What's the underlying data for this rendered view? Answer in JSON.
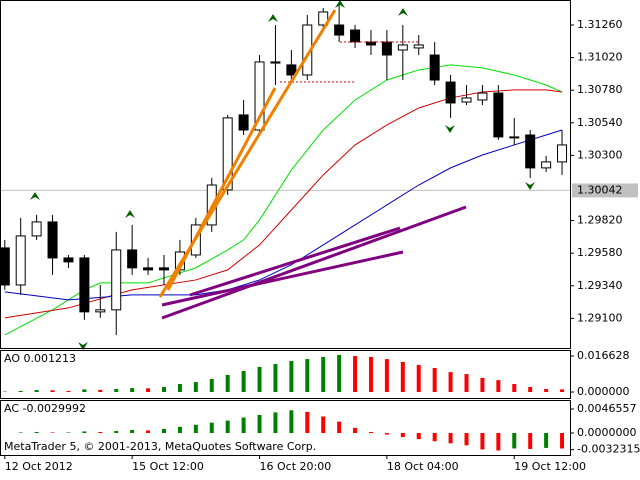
{
  "chart_data": [
    {
      "type": "candlestick",
      "x": [
        0,
        1,
        2,
        3,
        4,
        5,
        6,
        7,
        8,
        9,
        10,
        11,
        12,
        13,
        14,
        15,
        16,
        17,
        18,
        19,
        20,
        21,
        22,
        23,
        24,
        25,
        26,
        27,
        28,
        29,
        30,
        31,
        32,
        33,
        34,
        35
      ],
      "open": [
        1.29619,
        1.29346,
        1.29707,
        1.2981,
        1.29545,
        1.29545,
        1.29148,
        1.29163,
        1.29604,
        1.29472,
        1.29472,
        1.29457,
        1.29567,
        1.29788,
        1.30046,
        1.30598,
        1.30487,
        1.30988,
        1.30966,
        1.30892,
        1.3126,
        1.3126,
        1.31223,
        1.31135,
        1.31135,
        1.31076,
        1.31091,
        1.31039,
        1.3084,
        1.30693,
        1.30708,
        1.30759,
        1.30436,
        1.3045,
        1.30208,
        1.30252
      ],
      "high": [
        1.29678,
        1.2984,
        1.29862,
        1.29862,
        1.29567,
        1.29567,
        1.29346,
        1.29737,
        1.29788,
        1.29545,
        1.29567,
        1.29678,
        1.2984,
        1.30134,
        1.30598,
        1.30708,
        1.31039,
        1.3126,
        1.31076,
        1.31334,
        1.31385,
        1.31407,
        1.3126,
        1.31223,
        1.31223,
        1.3126,
        1.31186,
        1.31135,
        1.30892,
        1.30818,
        1.30818,
        1.30818,
        1.30576,
        1.30487,
        1.30296,
        1.30487
      ],
      "low": [
        1.2931,
        1.29273,
        1.29678,
        1.2942,
        1.29472,
        1.29089,
        1.29104,
        1.28978,
        1.2942,
        1.2942,
        1.29346,
        1.2942,
        1.29545,
        1.29737,
        1.30009,
        1.3045,
        1.3045,
        1.30818,
        1.30855,
        1.30855,
        1.31223,
        1.31135,
        1.31091,
        1.31039,
        1.30855,
        1.30855,
        1.31039,
        1.30818,
        1.30576,
        1.30671,
        1.30671,
        1.30414,
        1.30377,
        1.30134,
        1.30178,
        1.30156
      ],
      "close": [
        1.29346,
        1.29707,
        1.2981,
        1.29545,
        1.29516,
        1.29148,
        1.29163,
        1.29604,
        1.29472,
        1.29457,
        1.29457,
        1.29589,
        1.29788,
        1.30082,
        1.30576,
        1.30487,
        1.30988,
        1.3098,
        1.30892,
        1.3126,
        1.31356,
        1.31186,
        1.31135,
        1.31113,
        1.31039,
        1.31113,
        1.31113,
        1.30855,
        1.30686,
        1.30723,
        1.30759,
        1.30436,
        1.3043,
        1.30208,
        1.30252,
        1.30377
      ],
      "up_color": "#ffffff",
      "down_color": "#000000",
      "lines": [
        {
          "color": "#00e000",
          "x": [
            0,
            3,
            5,
            6,
            9,
            12,
            14,
            15,
            16,
            18,
            20,
            22,
            24,
            26,
            28,
            30,
            32,
            34,
            35
          ],
          "values": [
            1.28978,
            1.29163,
            1.2931,
            1.29361,
            1.29361,
            1.29472,
            1.29604,
            1.29678,
            1.29825,
            1.30193,
            1.30487,
            1.30708,
            1.30855,
            1.30929,
            1.30966,
            1.30944,
            1.30892,
            1.30818,
            1.30767
          ]
        },
        {
          "color": "#d00000",
          "x": [
            0,
            4,
            8,
            12,
            14,
            16,
            18,
            20,
            22,
            24,
            26,
            28,
            30,
            32,
            34,
            35
          ],
          "values": [
            1.29104,
            1.29177,
            1.2931,
            1.29383,
            1.29457,
            1.29641,
            1.29898,
            1.30156,
            1.30377,
            1.30524,
            1.30649,
            1.30723,
            1.30767,
            1.30782,
            1.30782,
            1.30767
          ]
        },
        {
          "color": "#0000c0",
          "x": [
            0,
            4,
            8,
            12,
            14,
            16,
            18,
            20,
            22,
            24,
            26,
            28,
            30,
            32,
            34,
            35
          ],
          "values": [
            1.29295,
            1.29236,
            1.29273,
            1.29273,
            1.2931,
            1.29383,
            1.29494,
            1.29641,
            1.29788,
            1.29935,
            1.30082,
            1.30208,
            1.30303,
            1.30377,
            1.3045,
            1.30487
          ]
        }
      ],
      "xlim": [
        -0.3,
        35.5
      ],
      "ylim": [
        1.28882,
        1.31444
      ],
      "yticks": [
        {
          "value": 1.3126,
          "label": "1.31260"
        },
        {
          "value": 1.3102,
          "label": "1.31020"
        },
        {
          "value": 1.3078,
          "label": "1.30780"
        },
        {
          "value": 1.3054,
          "label": "1.30540"
        },
        {
          "value": 1.303,
          "label": "1.30300"
        },
        {
          "value": 1.2982,
          "label": "1.29820"
        },
        {
          "value": 1.2958,
          "label": "1.29580"
        },
        {
          "value": 1.2934,
          "label": "1.29340"
        },
        {
          "value": 1.291,
          "label": "1.29100"
        }
      ],
      "last_price": 1.30042,
      "xticks": [
        {
          "value": 0,
          "label": "12 Oct 2012"
        },
        {
          "value": 8,
          "label": "15 Oct 12:00"
        },
        {
          "value": 16,
          "label": "16 Oct 20:00"
        },
        {
          "value": 24,
          "label": "18 Oct 04:00"
        },
        {
          "value": 32,
          "label": "19 Oct 12:00"
        }
      ]
    },
    {
      "type": "bar",
      "title": "AO 0.001213",
      "up_color": "#008000",
      "down_color": "#ff0000",
      "values": [
        0.0002,
        0.0005,
        0.0009,
        0.0008,
        0.0005,
        0.0012,
        0.001,
        0.0014,
        0.0018,
        0.0017,
        0.0023,
        0.0037,
        0.0046,
        0.006,
        0.0079,
        0.0097,
        0.0116,
        0.0129,
        0.0143,
        0.0152,
        0.0162,
        0.0171,
        0.0166,
        0.0162,
        0.0152,
        0.0139,
        0.0125,
        0.0111,
        0.0092,
        0.0083,
        0.0065,
        0.0055,
        0.0037,
        0.0023,
        0.0014,
        0.001213
      ],
      "ylim": [
        -0.00277,
        0.0194
      ],
      "yticks": [
        0.016628,
        {
          "value": 0,
          "label": "0.000000"
        }
      ]
    },
    {
      "type": "bar",
      "title": "AC -0.0029992",
      "annotation": "MetaTrader 5, © 2001-2013, MetaQuotes Software Corp.",
      "up_color": "#008000",
      "down_color": "#ff0000",
      "values": [
        0,
        0.0001,
        0.0002,
        0.0001,
        0.0001,
        0.0003,
        0.0002,
        0.0004,
        0.0006,
        0.0005,
        0.0008,
        0.0012,
        0.0016,
        0.002,
        0.0024,
        0.003,
        0.0035,
        0.004,
        0.0044,
        0.0041,
        0.0032,
        0.0022,
        0.001,
        0.0002,
        -0.0003,
        -0.0008,
        -0.0012,
        -0.0016,
        -0.002,
        -0.0024,
        -0.0032,
        -0.0034,
        -0.003,
        -0.0031,
        -0.0029,
        -0.0029992
      ],
      "ylim": [
        -0.00427,
        0.0064
      ],
      "yticks": [
        0.0046557,
        {
          "value": 0,
          "label": "0.0000000"
        },
        -0.0032315
      ]
    }
  ]
}
